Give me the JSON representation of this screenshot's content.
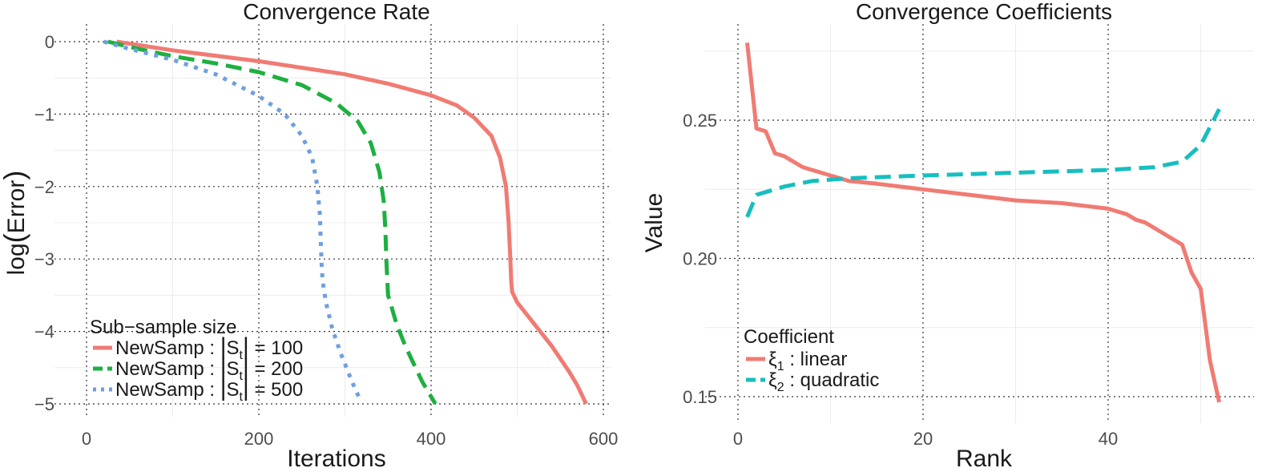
{
  "chart_data": [
    {
      "type": "line",
      "title": "Convergence Rate",
      "xlabel": "Iterations",
      "ylabel_prefix": "log",
      "ylabel_inner": "Error",
      "xlim": [
        0,
        600
      ],
      "ylim": [
        -5,
        0
      ],
      "x_ticks": [
        0,
        200,
        400,
        600
      ],
      "y_ticks": [
        0,
        -1,
        -2,
        -3,
        -4,
        -5
      ],
      "x_tick_labels": [
        "0",
        "200",
        "400",
        "600"
      ],
      "y_tick_labels": [
        "0",
        "−1",
        "−2",
        "−3",
        "−4",
        "−5"
      ],
      "legend": {
        "title": "Sub−sample size",
        "position": "bottom-left",
        "entries": [
          {
            "name": "NewSamp",
            "sym": "S",
            "sub": "t",
            "value": "100"
          },
          {
            "name": "NewSamp",
            "sym": "S",
            "sub": "t",
            "value": "200"
          },
          {
            "name": "NewSamp",
            "sym": "S",
            "sub": "t",
            "value": "500"
          }
        ]
      },
      "series": [
        {
          "name": "NewSamp : |St| = 100",
          "color": "#F07B73",
          "style": "solid",
          "x": [
            35,
            100,
            200,
            300,
            350,
            400,
            430,
            450,
            470,
            480,
            487,
            490,
            492,
            493,
            494,
            496,
            500,
            520,
            540,
            560,
            570,
            580
          ],
          "y": [
            0,
            -0.12,
            -0.27,
            -0.45,
            -0.58,
            -0.74,
            -0.88,
            -1.05,
            -1.3,
            -1.6,
            -2.0,
            -2.5,
            -3.0,
            -3.3,
            -3.45,
            -3.5,
            -3.6,
            -3.9,
            -4.2,
            -4.55,
            -4.75,
            -5.0
          ]
        },
        {
          "name": "NewSamp : |St| = 200",
          "color": "#1DB040",
          "style": "dashed",
          "x": [
            25,
            60,
            100,
            150,
            200,
            250,
            290,
            315,
            330,
            340,
            345,
            347,
            348,
            350,
            360,
            370,
            380,
            390,
            400,
            405
          ],
          "y": [
            0,
            -0.1,
            -0.2,
            -0.3,
            -0.42,
            -0.6,
            -0.85,
            -1.1,
            -1.4,
            -1.8,
            -2.2,
            -2.6,
            -3.0,
            -3.5,
            -3.9,
            -4.2,
            -4.45,
            -4.7,
            -4.9,
            -5.0
          ]
        },
        {
          "name": "NewSamp : |St| = 500",
          "color": "#6E9FE0",
          "style": "dotted",
          "x": [
            20,
            50,
            100,
            150,
            200,
            230,
            250,
            262,
            268,
            271,
            272,
            273,
            274,
            278,
            285,
            295,
            305,
            312,
            318
          ],
          "y": [
            0,
            -0.1,
            -0.25,
            -0.45,
            -0.75,
            -1.0,
            -1.3,
            -1.6,
            -2.0,
            -2.4,
            -2.8,
            -3.1,
            -3.3,
            -3.6,
            -3.95,
            -4.3,
            -4.6,
            -4.8,
            -4.95
          ]
        }
      ]
    },
    {
      "type": "line",
      "title": "Convergence Coefficients",
      "xlabel": "Rank",
      "ylabel": "Value",
      "xlim": [
        0,
        55
      ],
      "ylim": [
        0.145,
        0.285
      ],
      "x_ticks": [
        0,
        20,
        40
      ],
      "y_ticks": [
        0.15,
        0.2,
        0.25
      ],
      "x_tick_labels": [
        "0",
        "20",
        "40"
      ],
      "y_tick_labels": [
        "0.15",
        "0.20",
        "0.25"
      ],
      "legend": {
        "title": "Coefficient",
        "position": "bottom-left",
        "entries": [
          {
            "sym": "ξ",
            "sub": "1",
            "label": "linear"
          },
          {
            "sym": "ξ",
            "sub": "2",
            "label": "quadratic"
          }
        ]
      },
      "series": [
        {
          "name": "ξ1 : linear",
          "color": "#F07B73",
          "style": "solid",
          "x": [
            1,
            2,
            3,
            4,
            5,
            6,
            7,
            8,
            9,
            10,
            12,
            15,
            20,
            25,
            30,
            35,
            40,
            41,
            42,
            43,
            44,
            45,
            46,
            47,
            48,
            49,
            50,
            51,
            52
          ],
          "y": [
            0.278,
            0.247,
            0.246,
            0.238,
            0.237,
            0.235,
            0.233,
            0.232,
            0.231,
            0.23,
            0.228,
            0.227,
            0.225,
            0.223,
            0.221,
            0.22,
            0.218,
            0.217,
            0.216,
            0.214,
            0.213,
            0.211,
            0.209,
            0.207,
            0.205,
            0.195,
            0.189,
            0.163,
            0.148
          ]
        },
        {
          "name": "ξ2 : quadratic",
          "color": "#17BEBF",
          "style": "dashed",
          "x": [
            1,
            2,
            3,
            5,
            8,
            12,
            20,
            30,
            40,
            45,
            48,
            50,
            52
          ],
          "y": [
            0.215,
            0.223,
            0.224,
            0.226,
            0.228,
            0.229,
            0.23,
            0.231,
            0.232,
            0.233,
            0.235,
            0.241,
            0.254
          ]
        }
      ]
    }
  ]
}
